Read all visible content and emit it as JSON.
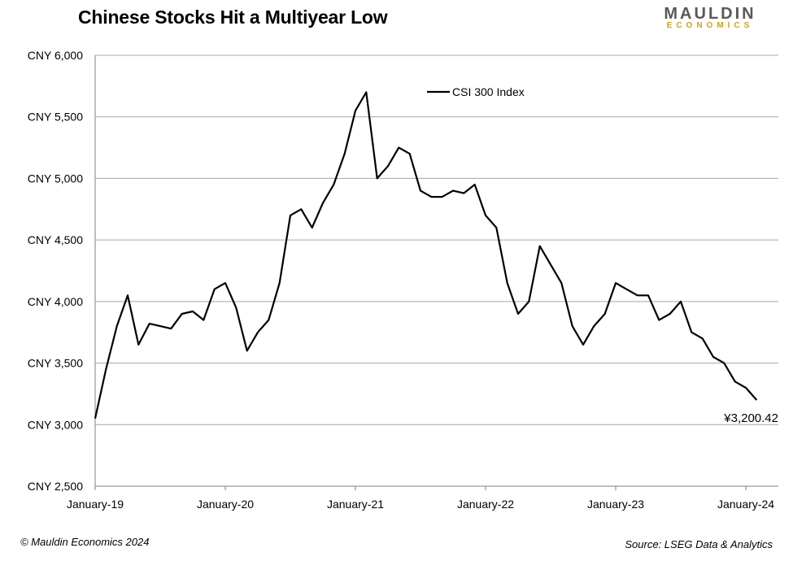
{
  "header": {
    "title": "Chinese Stocks Hit a Multiyear Low",
    "logo_top": "MAULDIN",
    "logo_bottom": "ECONOMICS",
    "logo_accent": "#d4a017"
  },
  "footer": {
    "copyright": "© Mauldin Economics 2024",
    "source": "Source: LSEG Data & Analytics"
  },
  "chart_data": {
    "type": "line",
    "title": "Chinese Stocks Hit a Multiyear Low",
    "xlabel": "",
    "ylabel": "",
    "ylim": [
      2500,
      6000
    ],
    "yticks": [
      2500,
      3000,
      3500,
      4000,
      4500,
      5000,
      5500,
      6000
    ],
    "ytick_labels": [
      "CNY 2,500",
      "CNY 3,000",
      "CNY 3,500",
      "CNY 4,000",
      "CNY 4,500",
      "CNY 5,000",
      "CNY 5,500",
      "CNY 6,000"
    ],
    "xlim": [
      "2019-01",
      "2024-04"
    ],
    "xticks": [
      "2019-01",
      "2020-01",
      "2021-01",
      "2022-01",
      "2023-01",
      "2024-01"
    ],
    "xtick_labels": [
      "January-19",
      "January-20",
      "January-21",
      "January-22",
      "January-23",
      "January-24"
    ],
    "grid": "horizontal",
    "legend": "top-center",
    "line_color": "#000000",
    "end_label": "¥3,200.42",
    "series": [
      {
        "name": "CSI 300 Index",
        "x": [
          "2019-01",
          "2019-02",
          "2019-03",
          "2019-04",
          "2019-05",
          "2019-06",
          "2019-07",
          "2019-08",
          "2019-09",
          "2019-10",
          "2019-11",
          "2019-12",
          "2020-01",
          "2020-02",
          "2020-03",
          "2020-04",
          "2020-05",
          "2020-06",
          "2020-07",
          "2020-08",
          "2020-09",
          "2020-10",
          "2020-11",
          "2020-12",
          "2021-01",
          "2021-02",
          "2021-03",
          "2021-04",
          "2021-05",
          "2021-06",
          "2021-07",
          "2021-08",
          "2021-09",
          "2021-10",
          "2021-11",
          "2021-12",
          "2022-01",
          "2022-02",
          "2022-03",
          "2022-04",
          "2022-05",
          "2022-06",
          "2022-07",
          "2022-08",
          "2022-09",
          "2022-10",
          "2022-11",
          "2022-12",
          "2023-01",
          "2023-02",
          "2023-03",
          "2023-04",
          "2023-05",
          "2023-06",
          "2023-07",
          "2023-08",
          "2023-09",
          "2023-10",
          "2023-11",
          "2023-12",
          "2024-01",
          "2024-02"
        ],
        "values": [
          3050,
          3450,
          3800,
          4050,
          3650,
          3820,
          3800,
          3780,
          3900,
          3920,
          3850,
          4100,
          4150,
          3950,
          3600,
          3750,
          3850,
          4150,
          4700,
          4750,
          4600,
          4800,
          4950,
          5200,
          5550,
          5700,
          5000,
          5100,
          5250,
          5200,
          4900,
          4850,
          4850,
          4900,
          4880,
          4950,
          4700,
          4600,
          4150,
          3900,
          4000,
          4450,
          4300,
          4150,
          3800,
          3650,
          3800,
          3900,
          4150,
          4100,
          4050,
          4050,
          3850,
          3900,
          4000,
          3750,
          3700,
          3550,
          3500,
          3350,
          3300,
          3200
        ]
      }
    ]
  }
}
